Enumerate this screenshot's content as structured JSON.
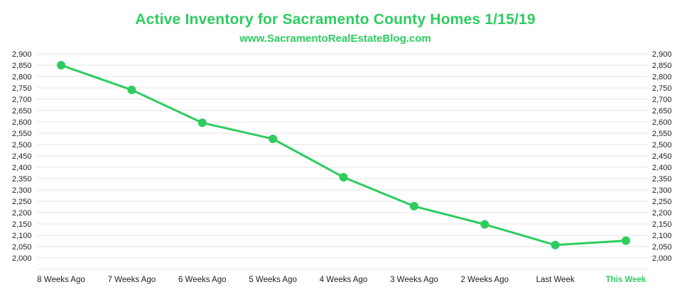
{
  "chart_data": {
    "type": "line",
    "title": "Active Inventory for Sacramento County Homes 1/15/19",
    "subtitle": "www.SacramentoRealEstateBlog.com",
    "categories": [
      "8 Weeks Ago",
      "7 Weeks Ago",
      "6 Weeks Ago",
      "5 Weeks Ago",
      "4 Weeks Ago",
      "3 Weeks Ago",
      "2 Weeks Ago",
      "Last Week",
      "This Week"
    ],
    "highlighted_category": "This Week",
    "values": [
      2850,
      2741,
      2596,
      2525,
      2356,
      2228,
      2148,
      2057,
      2076
    ],
    "ylim": [
      1950,
      2900
    ],
    "yticks": [
      2000,
      2050,
      2100,
      2150,
      2200,
      2250,
      2300,
      2350,
      2400,
      2450,
      2500,
      2550,
      2600,
      2650,
      2700,
      2750,
      2800,
      2850,
      2900
    ],
    "ytick_labels": [
      "2,000",
      "2,050",
      "2,100",
      "2,150",
      "2,200",
      "2,250",
      "2,300",
      "2,350",
      "2,400",
      "2,450",
      "2,500",
      "2,550",
      "2,600",
      "2,650",
      "2,700",
      "2,750",
      "2,800",
      "2,850",
      "2,900"
    ],
    "grid": true,
    "dual_y_axis": true,
    "xlabel": "",
    "ylabel": "",
    "colors": {
      "line": "#2ecc5f",
      "title": "#2ecc5f",
      "grid": "#e3e3e3",
      "axis_text": "#222222"
    }
  }
}
